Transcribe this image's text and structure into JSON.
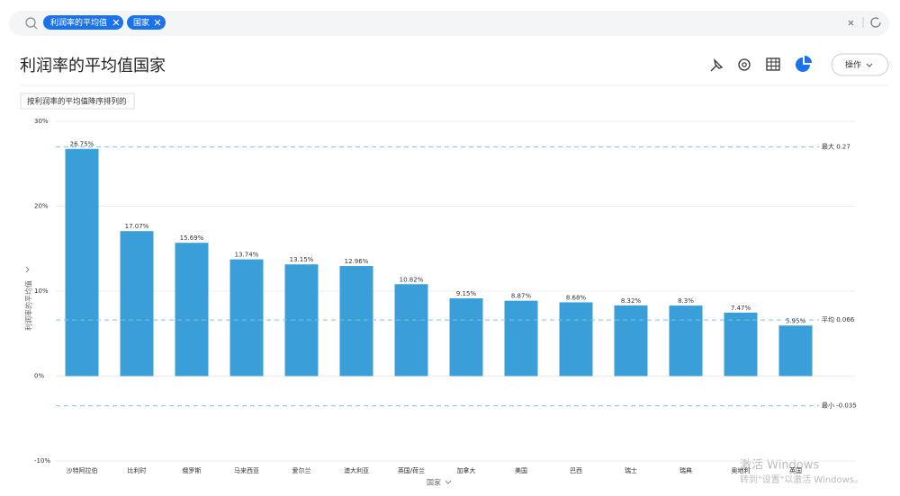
{
  "search": {
    "chips": [
      "利润率的平均值",
      "国家"
    ]
  },
  "header": {
    "title": "利润率的平均值国家",
    "action_button": "操作"
  },
  "sort_note": "按利润率的平均值降序排列的",
  "chart_data": {
    "type": "bar",
    "x_label": "国家",
    "y_label": "利润率的平均值",
    "categories": [
      "沙特阿拉伯",
      "比利时",
      "俄罗斯",
      "马来西亚",
      "爱尔兰",
      "澳大利亚",
      "英国/荷兰",
      "加拿大",
      "美国",
      "巴西",
      "瑞士",
      "瑞典",
      "奥地利",
      "英国"
    ],
    "values": [
      26.75,
      17.07,
      15.69,
      13.74,
      13.15,
      12.96,
      10.82,
      9.15,
      8.87,
      8.68,
      8.32,
      8.3,
      7.47,
      5.95
    ],
    "value_labels": [
      "26.75%",
      "17.07%",
      "15.69%",
      "13.74%",
      "13.15%",
      "12.96%",
      "10.82%",
      "9.15%",
      "8.87%",
      "8.68%",
      "8.32%",
      "8.3%",
      "7.47%",
      "5.95%"
    ],
    "color": "#3a9fd8",
    "ylim": [
      -10,
      30
    ],
    "yticks": [
      {
        "value": -10,
        "label": "-10%"
      },
      {
        "value": 0,
        "label": "0%"
      },
      {
        "value": 10,
        "label": "10%"
      },
      {
        "value": 20,
        "label": "20%"
      },
      {
        "value": 30,
        "label": "30%"
      }
    ],
    "grid": true,
    "reference_lines": [
      {
        "label": "最大 0.27",
        "value": 27
      },
      {
        "label": "平均 0.066",
        "value": 6.6
      },
      {
        "label": "最小 -0.035",
        "value": -3.5
      }
    ]
  },
  "watermark": {
    "line1": "激活 Windows",
    "line2": "转到\"设置\"以激活 Windows。"
  }
}
